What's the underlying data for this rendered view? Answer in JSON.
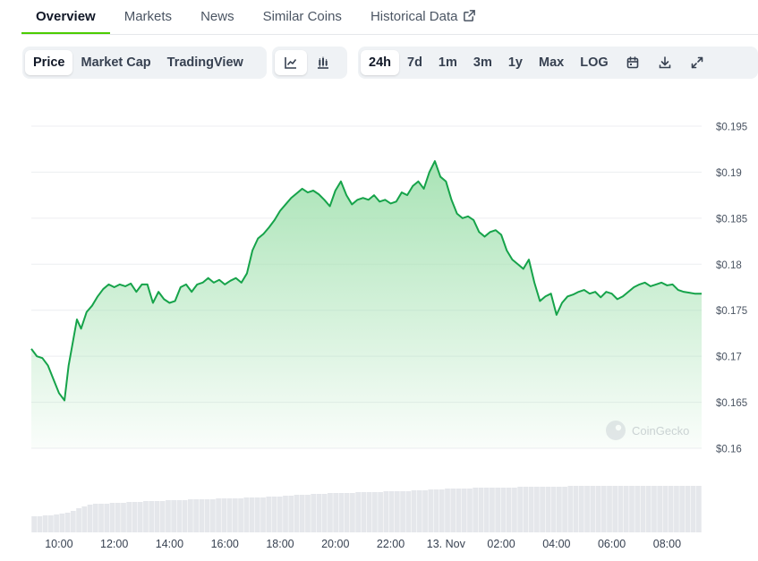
{
  "tabs": [
    {
      "label": "Overview",
      "active": true
    },
    {
      "label": "Markets",
      "active": false
    },
    {
      "label": "News",
      "active": false
    },
    {
      "label": "Similar Coins",
      "active": false
    },
    {
      "label": "Historical Data",
      "active": false,
      "icon": "external-link-icon"
    }
  ],
  "toolbar": {
    "metric": [
      {
        "label": "Price",
        "selected": true
      },
      {
        "label": "Market Cap",
        "selected": false
      },
      {
        "label": "TradingView",
        "selected": false
      }
    ],
    "chart_style": [
      {
        "icon": "line-chart-icon",
        "selected": true
      },
      {
        "icon": "candlestick-chart-icon",
        "selected": false
      }
    ],
    "range": [
      {
        "label": "24h",
        "selected": true
      },
      {
        "label": "7d",
        "selected": false
      },
      {
        "label": "1m",
        "selected": false
      },
      {
        "label": "3m",
        "selected": false
      },
      {
        "label": "1y",
        "selected": false
      },
      {
        "label": "Max",
        "selected": false
      },
      {
        "label": "LOG",
        "selected": false
      }
    ],
    "actions": [
      "calendar-icon",
      "download-icon",
      "fullscreen-icon"
    ]
  },
  "colors": {
    "line": "#16a34a",
    "fill_top": "#9fe0ad",
    "volume": "#e5e7eb",
    "grid": "#eceef1",
    "accent": "#4bcc00"
  },
  "watermark": "CoinGecko",
  "chart_data": {
    "type": "area",
    "title": "",
    "xlabel": "",
    "ylabel": "",
    "ylim": [
      0.16,
      0.195
    ],
    "grid": true,
    "y_ticks": [
      {
        "value": 0.195,
        "label": "$0.195"
      },
      {
        "value": 0.19,
        "label": "$0.19"
      },
      {
        "value": 0.185,
        "label": "$0.185"
      },
      {
        "value": 0.18,
        "label": "$0.18"
      },
      {
        "value": 0.175,
        "label": "$0.175"
      },
      {
        "value": 0.17,
        "label": "$0.17"
      },
      {
        "value": 0.165,
        "label": "$0.165"
      },
      {
        "value": 0.16,
        "label": "$0.16"
      }
    ],
    "xlim": [
      9.0,
      33.25
    ],
    "x_ticks": [
      {
        "value": 10,
        "label": "10:00"
      },
      {
        "value": 12,
        "label": "12:00"
      },
      {
        "value": 14,
        "label": "14:00"
      },
      {
        "value": 16,
        "label": "16:00"
      },
      {
        "value": 18,
        "label": "18:00"
      },
      {
        "value": 20,
        "label": "20:00"
      },
      {
        "value": 22,
        "label": "22:00"
      },
      {
        "value": 24,
        "label": "13. Nov"
      },
      {
        "value": 26,
        "label": "02:00"
      },
      {
        "value": 28,
        "label": "04:00"
      },
      {
        "value": 30,
        "label": "06:00"
      },
      {
        "value": 32,
        "label": "08:00"
      }
    ],
    "series": [
      {
        "x": [
          9.0,
          9.2,
          9.4,
          9.6,
          9.8,
          10.0,
          10.2,
          10.35,
          10.5,
          10.65,
          10.8,
          11.0,
          11.2,
          11.4,
          11.6,
          11.8,
          12.0,
          12.2,
          12.4,
          12.6,
          12.8,
          13.0,
          13.2,
          13.4,
          13.6,
          13.8,
          14.0,
          14.2,
          14.4,
          14.6,
          14.8,
          15.0,
          15.2,
          15.4,
          15.6,
          15.8,
          16.0,
          16.2,
          16.4,
          16.6,
          16.8,
          17.0,
          17.2,
          17.4,
          17.6,
          17.8,
          18.0,
          18.2,
          18.4,
          18.6,
          18.8,
          19.0,
          19.2,
          19.4,
          19.6,
          19.8,
          20.0,
          20.2,
          20.4,
          20.6,
          20.8,
          21.0,
          21.2,
          21.4,
          21.6,
          21.8,
          22.0,
          22.2,
          22.4,
          22.6,
          22.8,
          23.0,
          23.2,
          23.4,
          23.6,
          23.8,
          24.0,
          24.2,
          24.4,
          24.6,
          24.8,
          25.0,
          25.2,
          25.4,
          25.6,
          25.8,
          26.0,
          26.2,
          26.4,
          26.6,
          26.8,
          27.0,
          27.2,
          27.4,
          27.6,
          27.8,
          28.0,
          28.2,
          28.4,
          28.6,
          28.8,
          29.0,
          29.2,
          29.4,
          29.6,
          29.8,
          30.0,
          30.2,
          30.4,
          30.6,
          30.8,
          31.0,
          31.2,
          31.4,
          31.6,
          31.8,
          32.0,
          32.2,
          32.4,
          32.6,
          32.8,
          33.0,
          33.25
        ],
        "y": [
          0.1708,
          0.17,
          0.1698,
          0.169,
          0.1675,
          0.166,
          0.1652,
          0.169,
          0.1715,
          0.174,
          0.173,
          0.1748,
          0.1755,
          0.1765,
          0.1773,
          0.1778,
          0.1775,
          0.1778,
          0.1776,
          0.1779,
          0.177,
          0.1778,
          0.1778,
          0.1758,
          0.177,
          0.1762,
          0.1758,
          0.176,
          0.1775,
          0.1778,
          0.177,
          0.1778,
          0.178,
          0.1785,
          0.178,
          0.1783,
          0.1778,
          0.1782,
          0.1785,
          0.178,
          0.179,
          0.1815,
          0.1828,
          0.1833,
          0.184,
          0.1848,
          0.1858,
          0.1865,
          0.1872,
          0.1877,
          0.1882,
          0.1878,
          0.188,
          0.1876,
          0.187,
          0.1863,
          0.188,
          0.189,
          0.1875,
          0.1865,
          0.187,
          0.1872,
          0.187,
          0.1875,
          0.1868,
          0.187,
          0.1866,
          0.1868,
          0.1878,
          0.1875,
          0.1885,
          0.189,
          0.1882,
          0.19,
          0.1912,
          0.1895,
          0.189,
          0.187,
          0.1855,
          0.185,
          0.1852,
          0.1848,
          0.1835,
          0.183,
          0.1835,
          0.1837,
          0.1832,
          0.1815,
          0.1805,
          0.18,
          0.1795,
          0.1805,
          0.178,
          0.176,
          0.1765,
          0.1768,
          0.1745,
          0.1758,
          0.1765,
          0.1767,
          0.177,
          0.1772,
          0.1768,
          0.177,
          0.1764,
          0.177,
          0.1768,
          0.1762,
          0.1765,
          0.177,
          0.1775,
          0.1778,
          0.178,
          0.1776,
          0.1778,
          0.178,
          0.1777,
          0.1778,
          0.1772,
          0.177,
          0.1769,
          0.1768,
          0.1768
        ]
      }
    ],
    "volume": {
      "x_start": 9.0,
      "x_end": 33.25,
      "bars": [
        18,
        18,
        19,
        19,
        20,
        21,
        22,
        24,
        27,
        29,
        31,
        32,
        32,
        32,
        33,
        33,
        33,
        34,
        34,
        34,
        35,
        35,
        35,
        35,
        36,
        36,
        36,
        36,
        37,
        37,
        37,
        37,
        37,
        38,
        38,
        38,
        38,
        38,
        39,
        39,
        39,
        39,
        40,
        40,
        40,
        41,
        41,
        42,
        42,
        42,
        43,
        43,
        43,
        44,
        44,
        44,
        44,
        44,
        45,
        45,
        45,
        45,
        45,
        46,
        46,
        46,
        46,
        46,
        47,
        47,
        47,
        48,
        48,
        48,
        49,
        49,
        49,
        49,
        49,
        50,
        50,
        50,
        50,
        50,
        50,
        50,
        50,
        51,
        51,
        51,
        51,
        51,
        51,
        51,
        51,
        51,
        52,
        52,
        52,
        52,
        52,
        52,
        52,
        52,
        52,
        52,
        52,
        52,
        52,
        52,
        52,
        52,
        52,
        52,
        52,
        52,
        52,
        52,
        52,
        52
      ]
    }
  }
}
